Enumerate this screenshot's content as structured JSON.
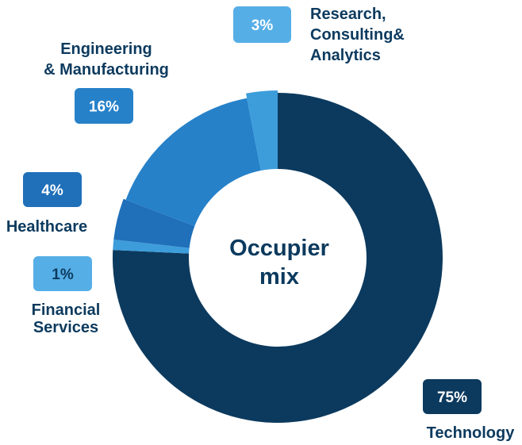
{
  "chart_data": {
    "type": "pie",
    "center_text": [
      "Occupier",
      "mix"
    ],
    "slices": [
      {
        "label": [
          "Technology"
        ],
        "value": 75,
        "value_label": "75%",
        "color": "#0c3a5e",
        "badge_color": "#0c3a5e",
        "badge_text_color": "#ffffff",
        "label_color": "#0c3a5e"
      },
      {
        "label": [
          "Financial",
          "Services"
        ],
        "value": 1,
        "value_label": "1%",
        "color": "#3d9ddb",
        "badge_color": "#56aee6",
        "badge_text_color": "#0c3a5e",
        "label_color": "#0c3a5e"
      },
      {
        "label": [
          "Healthcare"
        ],
        "value": 4,
        "value_label": "4%",
        "color": "#1f6fb9",
        "badge_color": "#1f6fb9",
        "badge_text_color": "#ffffff",
        "label_color": "#0c3a5e"
      },
      {
        "label": [
          "Engineering",
          "& Manufacturing"
        ],
        "value": 16,
        "value_label": "16%",
        "color": "#2681c9",
        "badge_color": "#2681c9",
        "badge_text_color": "#ffffff",
        "label_color": "#0c3a5e"
      },
      {
        "label": [
          "Research,",
          "Consulting&",
          "Analytics"
        ],
        "value": 3,
        "value_label": "3%",
        "color": "#3d9ddb",
        "badge_color": "#56aee6",
        "badge_text_color": "#ffffff",
        "label_color": "#0c3a5e"
      }
    ],
    "colors": {
      "center_text": "#0c3a5e"
    }
  }
}
